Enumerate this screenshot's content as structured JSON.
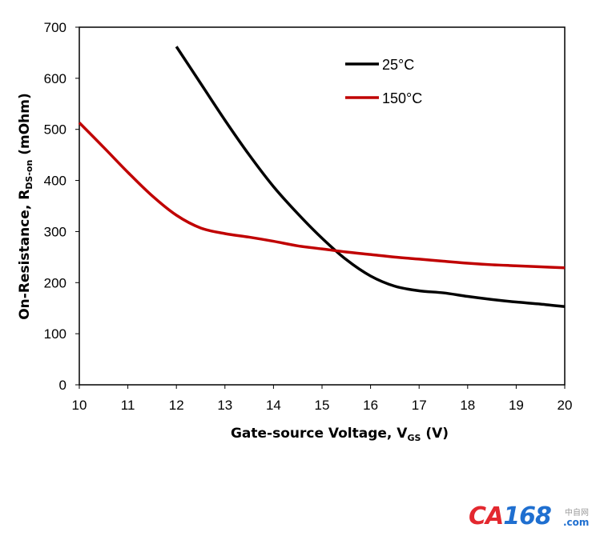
{
  "chart_data": {
    "type": "line",
    "xlabel_main": "Gate-source Voltage, V",
    "xlabel_sub": "GS",
    "xlabel_tail": " (V)",
    "ylabel_main": "On-Resistance, R",
    "ylabel_sub": "DS-on",
    "ylabel_tail": " (mOhm)",
    "xlim": [
      10,
      20
    ],
    "ylim": [
      0,
      700
    ],
    "xticks": [
      "10",
      "11",
      "12",
      "13",
      "14",
      "15",
      "16",
      "17",
      "18",
      "19",
      "20"
    ],
    "yticks": [
      "0",
      "100",
      "200",
      "300",
      "400",
      "500",
      "600",
      "700"
    ],
    "grid": false,
    "legend_position": "top-right",
    "series": [
      {
        "name": "25°C",
        "color": "#000000",
        "x": [
          12,
          12.5,
          13,
          13.5,
          14,
          14.5,
          15,
          15.5,
          16,
          16.5,
          17,
          17.5,
          18,
          18.5,
          19,
          19.5,
          20
        ],
        "y": [
          662,
          590,
          518,
          450,
          388,
          335,
          287,
          245,
          213,
          193,
          184,
          180,
          173,
          167,
          162,
          158,
          153
        ]
      },
      {
        "name": "150°C",
        "color": "#c00000",
        "x": [
          10,
          10.5,
          11,
          11.5,
          12,
          12.5,
          13,
          13.5,
          14,
          14.5,
          15,
          15.5,
          16,
          16.5,
          17,
          17.5,
          18,
          18.5,
          19,
          19.5,
          20
        ],
        "y": [
          513,
          465,
          416,
          370,
          332,
          307,
          296,
          289,
          281,
          272,
          266,
          260,
          255,
          250,
          246,
          242,
          238,
          235,
          233,
          231,
          229
        ]
      }
    ]
  },
  "watermark": {
    "letters": "CA",
    "digits": "168",
    "cn": "中自网",
    "com": ".com"
  }
}
